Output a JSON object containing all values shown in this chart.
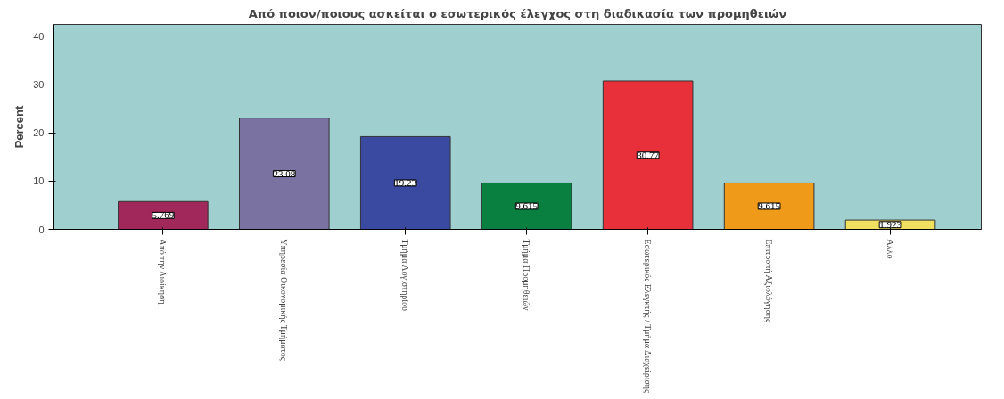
{
  "chart_data": {
    "type": "bar",
    "title": "Από ποιον/ποιους ασκείται ο εσωτερικός έλεγχος στη διαδικασία των προμηθειών",
    "ylabel": "Percent",
    "categories": [
      "Από την Διοίκηση",
      "Υπηρεσία Οικονομικής Τμήματος",
      "Τμήμα Λογιστηρίου",
      "Τμήμα Προμηθειών",
      "Εσωτερικός Ελεγκτής / Τμήμα Διαχείρισης",
      "Επιτροπή Αξιολόγησης",
      "Άλλο"
    ],
    "values": [
      5.769,
      23.08,
      19.23,
      9.615,
      30.77,
      9.615,
      1.923
    ],
    "colors": [
      "#a0285a",
      "#7a72a0",
      "#3a4aa0",
      "#0a8040",
      "#e8303a",
      "#f09a1a",
      "#f0e060"
    ],
    "data_labels": true,
    "ylim": [
      0,
      42.5
    ],
    "yticks": [
      0,
      10,
      20,
      30,
      40
    ],
    "grid": false
  }
}
